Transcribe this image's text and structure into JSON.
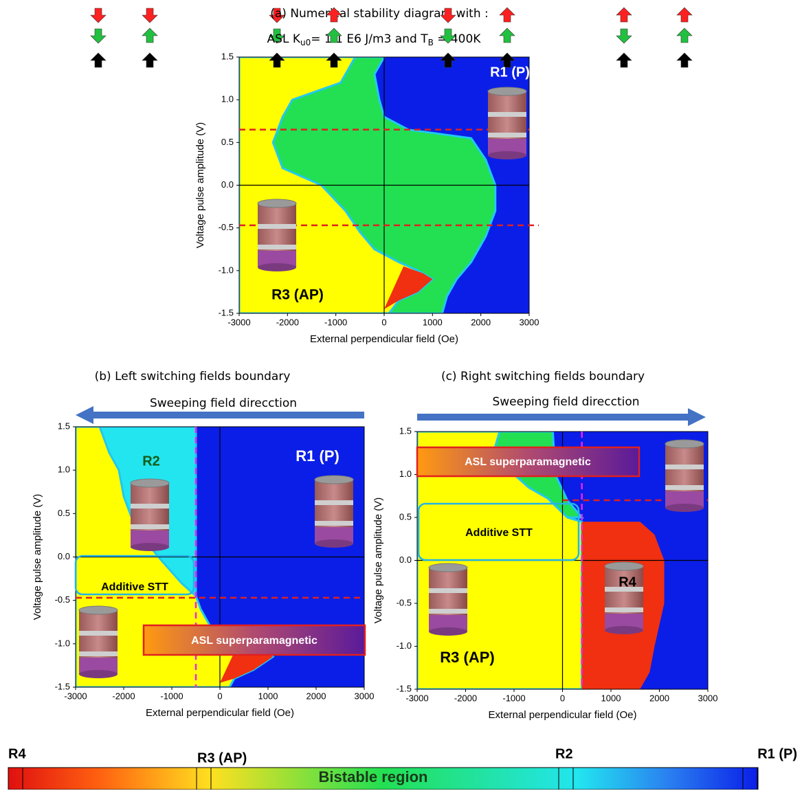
{
  "chart_data": [
    {
      "type": "region_map",
      "title": [
        "(a)  Numerical stability diagram with :",
        "ASL  K",
        "u0",
        "= 1.1 E6 J/m3 and T",
        "B",
        " = 400K"
      ],
      "xlabel": "External perpendicular field (Oe)",
      "ylabel": "Voltage pulse amplitude (V)",
      "xlim": [
        -3000,
        3000
      ],
      "ylim": [
        -1.5,
        1.5
      ],
      "xticks": [
        -3000,
        -2000,
        -1000,
        0,
        1000,
        2000,
        3000
      ],
      "yticks": [
        -1.5,
        {
          "value": -1,
          "label": "-1.0"
        },
        -0.5,
        {
          "value": 0,
          "label": "0.0"
        },
        0.5,
        {
          "value": 1,
          "label": "1.0"
        },
        1.5
      ],
      "zero_lines": true,
      "regions": [
        {
          "color": "#0a1ee8",
          "x": [
            -3000,
            3000,
            3000,
            -3000
          ],
          "y": [
            1.5,
            1.5,
            -1.5,
            -1.5
          ]
        },
        {
          "color": "#22e052",
          "x": [
            -3000,
            0,
            -200,
            -100,
            0,
            500,
            1800,
            2100,
            2300,
            2300,
            2100,
            1800,
            1500,
            1300,
            1200,
            -3000
          ],
          "y": [
            1.5,
            1.5,
            1.3,
            1.0,
            0.8,
            0.65,
            0.55,
            0.3,
            0,
            -0.3,
            -0.6,
            -0.9,
            -1.1,
            -1.3,
            -1.5,
            -1.5
          ]
        },
        {
          "color": "#ffff00",
          "x": [
            -3000,
            -600,
            -900,
            -1900,
            -2100,
            -2300,
            -2100,
            -1300,
            -800,
            -500,
            -200,
            300,
            700,
            1000,
            700,
            300,
            100,
            -3000
          ],
          "y": [
            1.5,
            1.5,
            1.2,
            1.0,
            0.8,
            0.5,
            0.2,
            0,
            -0.3,
            -0.55,
            -0.75,
            -0.9,
            -1.0,
            -1.1,
            -1.25,
            -1.35,
            -1.5,
            -1.5
          ]
        },
        {
          "color": "#f03010",
          "x": [
            0,
            400,
            800,
            1000,
            700,
            300
          ],
          "y": [
            -1.45,
            -0.95,
            -1.03,
            -1.1,
            -1.25,
            -1.35
          ]
        }
      ],
      "dashed_lines": [
        {
          "color": "#e02020",
          "x": [
            -3000,
            3000
          ],
          "y": [
            0.65,
            0.65
          ]
        },
        {
          "color": "#e02020",
          "x": [
            -3000,
            3200
          ],
          "y": [
            -0.47,
            -0.47
          ]
        }
      ],
      "annotations": [
        "R1 (P)",
        "R3 (AP)"
      ]
    },
    {
      "type": "region_map",
      "title": [
        "(b) Left switching fields boundary"
      ],
      "arrow": "left",
      "arrow_label": "Sweeping field direcction",
      "xlabel": "External perpendicular field (Oe)",
      "ylabel": "Voltage pulse amplitude (V)",
      "xlim": [
        -3000,
        3000
      ],
      "ylim": [
        -1.5,
        1.5
      ],
      "xticks": [
        -3000,
        -2000,
        -1000,
        0,
        1000,
        2000,
        3000
      ],
      "yticks": [
        -1.5,
        {
          "value": -1,
          "label": "-1.0"
        },
        -0.5,
        {
          "value": 0,
          "label": "0.0"
        },
        0.5,
        {
          "value": 1,
          "label": "1.0"
        },
        1.5
      ],
      "zero_lines": true,
      "regions": [
        {
          "color": "#0a1ee8",
          "x": [
            -3000,
            3000,
            3000,
            -3000
          ],
          "y": [
            1.5,
            1.5,
            -1.5,
            -1.5
          ]
        },
        {
          "color": "#22e5f0",
          "x": [
            -3000,
            -500,
            -500,
            -3000
          ],
          "y": [
            1.5,
            1.5,
            -0.45,
            -0.45
          ]
        },
        {
          "color": "#ffff00",
          "x": [
            -3000,
            -2500,
            -2300,
            -2100,
            -2000,
            -1800,
            -1500,
            -1200,
            -800,
            -500,
            -400,
            -200,
            300,
            800,
            1100,
            700,
            300,
            200,
            -3000
          ],
          "y": [
            1.5,
            1.5,
            1.2,
            1.0,
            0.7,
            0.4,
            0.15,
            -0.05,
            -0.3,
            -0.45,
            -0.6,
            -0.8,
            -0.95,
            -1.05,
            -1.15,
            -1.3,
            -1.4,
            -1.5,
            -1.5
          ]
        },
        {
          "color": "#f03010",
          "x": [
            0,
            400,
            800,
            1100,
            700,
            300
          ],
          "y": [
            -1.45,
            -0.98,
            -1.05,
            -1.15,
            -1.3,
            -1.4
          ]
        }
      ],
      "dashed_lines": [
        {
          "color": "#e02020",
          "x": [
            -3000,
            3000
          ],
          "y": [
            -0.47,
            -0.47
          ]
        },
        {
          "color": "#ee22ee",
          "x": [
            -500,
            -500
          ],
          "y": [
            1.5,
            -1.5
          ]
        }
      ],
      "annotations": [
        "R2",
        "R1 (P)",
        "Additive STT",
        "ASL superparamagnetic"
      ]
    },
    {
      "type": "region_map",
      "title": [
        "(c) Right switching fields boundary"
      ],
      "arrow": "right",
      "arrow_label": "Sweeping field direcction",
      "xlabel": "External perpendicular field (Oe)",
      "ylabel": "Voltage pulse amplitude (V)",
      "xlim": [
        -3000,
        3000
      ],
      "ylim": [
        -1.5,
        1.5
      ],
      "xticks": [
        -3000,
        -2000,
        -1000,
        0,
        1000,
        2000,
        3000
      ],
      "yticks": [
        -1.5,
        {
          "value": -1,
          "label": "-1.0"
        },
        -0.5,
        {
          "value": 0,
          "label": "0.0"
        },
        0.5,
        {
          "value": 1,
          "label": "1.0"
        },
        1.5
      ],
      "zero_lines": true,
      "regions": [
        {
          "color": "#0a1ee8",
          "x": [
            -3000,
            3000,
            3000,
            -3000
          ],
          "y": [
            1.5,
            1.5,
            -1.5,
            -1.5
          ]
        },
        {
          "color": "#22e052",
          "x": [
            -1500,
            -200,
            -150,
            100,
            400,
            -1500
          ],
          "y": [
            1.5,
            1.5,
            1.0,
            0.7,
            0.5,
            0.5
          ]
        },
        {
          "color": "#ffff00",
          "x": [
            -3000,
            -1300,
            -1400,
            -1100,
            -700,
            -300,
            100,
            400,
            400,
            -3000
          ],
          "y": [
            1.5,
            1.5,
            1.3,
            1.05,
            0.85,
            0.72,
            0.5,
            0.45,
            -1.5,
            -1.5
          ]
        },
        {
          "color": "#f03010",
          "x": [
            400,
            1600,
            1900,
            2100,
            2100,
            1900,
            1800,
            1600,
            400
          ],
          "y": [
            0.45,
            0.45,
            0.3,
            0,
            -0.5,
            -1.0,
            -1.3,
            -1.5,
            -1.5
          ]
        }
      ],
      "dashed_lines": [
        {
          "color": "#e02020",
          "x": [
            0,
            3000
          ],
          "y": [
            0.7,
            0.7
          ]
        },
        {
          "color": "#ee22ee",
          "x": [
            400,
            400
          ],
          "y": [
            1.5,
            -1.5
          ]
        }
      ],
      "annotations": [
        "ASL superparamagnetic",
        "Additive STT",
        "R4",
        "R3 (AP)"
      ]
    }
  ],
  "colorbar": {
    "labels": [
      "R4",
      "R3 (AP)",
      "R2",
      "R1 (P)"
    ],
    "center_label": "Bistable region"
  }
}
